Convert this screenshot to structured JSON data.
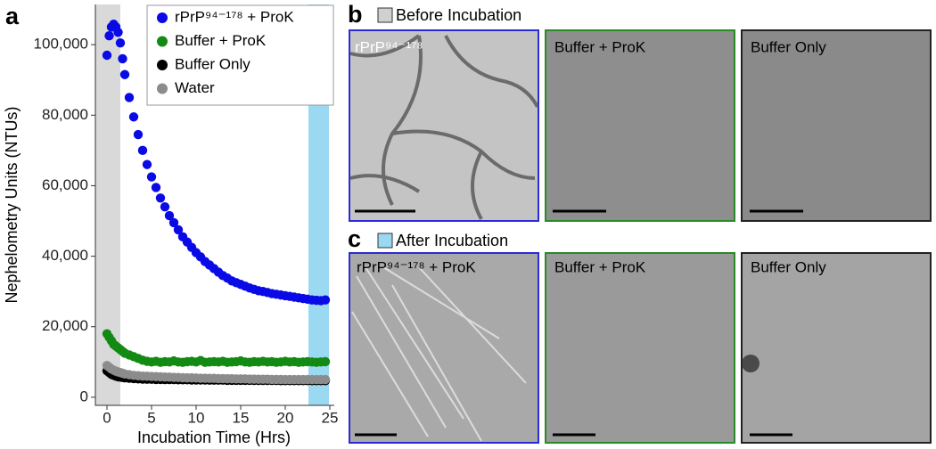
{
  "chart_data": {
    "type": "scatter",
    "panel_label": "a",
    "xlabel": "Incubation Time (Hrs)",
    "ylabel": "Nephelometry Units (NTUs)",
    "xlim": [
      -1.3,
      25.5
    ],
    "ylim": [
      -2300,
      111400
    ],
    "xticks": [
      0,
      5,
      10,
      15,
      20,
      25
    ],
    "yticks": [
      0,
      {
        "value": 20000,
        "label": "20,000"
      },
      {
        "value": 40000,
        "label": "40,000"
      },
      {
        "value": 60000,
        "label": "60,000"
      },
      {
        "value": 80000,
        "label": "80,000"
      },
      {
        "value": 100000,
        "label": "100,000"
      }
    ],
    "shaded_regions": [
      {
        "xlim": [
          -1.3,
          1.5
        ],
        "color": "#d9d9d9"
      },
      {
        "xlim": [
          22.6,
          24.9
        ],
        "color": "#9bd8f1"
      }
    ],
    "x": [
      0,
      0.25,
      0.5,
      0.75,
      1,
      1.25,
      1.5,
      1.75,
      2,
      2.5,
      3,
      3.5,
      4,
      4.5,
      5,
      5.5,
      6,
      6.5,
      7,
      7.5,
      8,
      8.5,
      9,
      9.5,
      10,
      10.5,
      11,
      11.5,
      12,
      12.5,
      13,
      13.5,
      14,
      14.5,
      15,
      15.5,
      16,
      16.5,
      17,
      17.5,
      18,
      18.5,
      19,
      19.5,
      20,
      20.5,
      21,
      21.5,
      22,
      22.5,
      23,
      23.5,
      24,
      24.5
    ],
    "series": [
      {
        "name": "rPrP⁹⁴⁻¹⁷⁸ + ProK",
        "color": "#0a0ae6",
        "values": [
          97000,
          102500,
          105000,
          105800,
          105000,
          103500,
          100500,
          96000,
          91500,
          85000,
          79500,
          74500,
          70000,
          66000,
          62500,
          59500,
          56500,
          54000,
          51500,
          49500,
          47500,
          45500,
          44000,
          42500,
          41000,
          39800,
          38500,
          37500,
          36500,
          35500,
          34500,
          33800,
          33000,
          32500,
          32000,
          31500,
          31000,
          30600,
          30200,
          30000,
          29700,
          29400,
          29200,
          29000,
          28800,
          28600,
          28400,
          28200,
          28000,
          27800,
          27600,
          27500,
          27400,
          27600
        ]
      },
      {
        "name": "Buffer + ProK",
        "color": "#138a13",
        "values": [
          18000,
          17000,
          16000,
          15000,
          14500,
          14000,
          13500,
          13000,
          12500,
          12000,
          11500,
          11000,
          10500,
          10200,
          10000,
          10200,
          9900,
          10100,
          10000,
          10300,
          10000,
          9900,
          10100,
          10200,
          10000,
          10400,
          9900,
          10000,
          10100,
          10000,
          10200,
          9900,
          10000,
          10100,
          10300,
          10000,
          9900,
          10100,
          10000,
          10200,
          10000,
          10100,
          9900,
          10000,
          10200,
          10000,
          10100,
          9900,
          10000,
          10100,
          10000,
          9900,
          10000,
          10100
        ]
      },
      {
        "name": "Buffer Only",
        "color": "#000000",
        "values": [
          7500,
          7000,
          6500,
          6200,
          6000,
          5800,
          5700,
          5600,
          5500,
          5400,
          5300,
          5200,
          5150,
          5100,
          5100,
          5050,
          5050,
          5000,
          5000,
          5000,
          4950,
          4950,
          4950,
          4900,
          4900,
          4900,
          4900,
          4850,
          4850,
          4850,
          4850,
          4800,
          4800,
          4800,
          4800,
          4800,
          4800,
          4750,
          4750,
          4750,
          4750,
          4750,
          4750,
          4700,
          4700,
          4700,
          4700,
          4700,
          4700,
          4700,
          4700,
          4700,
          4700,
          4700
        ]
      },
      {
        "name": "Water",
        "color": "#8c8c8c",
        "values": [
          9000,
          8500,
          8000,
          7700,
          7400,
          7200,
          7000,
          6800,
          6600,
          6400,
          6200,
          6100,
          6000,
          5950,
          5900,
          5850,
          5800,
          5750,
          5700,
          5650,
          5600,
          5550,
          5500,
          5500,
          5450,
          5400,
          5400,
          5350,
          5350,
          5300,
          5300,
          5250,
          5250,
          5200,
          5200,
          5200,
          5150,
          5150,
          5100,
          5100,
          5100,
          5050,
          5050,
          5050,
          5000,
          5000,
          5000,
          5000,
          5000,
          5000,
          5000,
          5000,
          5000,
          5000
        ]
      }
    ]
  },
  "panels": {
    "b": {
      "label": "b",
      "title": "Before Incubation",
      "images": [
        "rPrP⁹⁴⁻¹⁷⁸",
        "Buffer + ProK",
        "Buffer Only"
      ]
    },
    "c": {
      "label": "c",
      "title": "After Incubation",
      "images": [
        "rPrP⁹⁴⁻¹⁷⁸ + ProK",
        "Buffer + ProK",
        "Buffer Only"
      ]
    }
  }
}
